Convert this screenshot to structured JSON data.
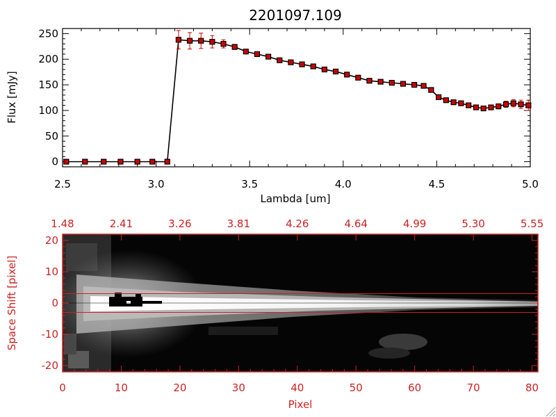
{
  "chart_data": [
    {
      "type": "line",
      "title": "2201097.109",
      "xlabel": "Lambda [um]",
      "ylabel": "Flux [mJy]",
      "xlim": [
        2.5,
        5.0
      ],
      "ylim": [
        -10,
        260
      ],
      "xticks": [
        "2.5",
        "3.0",
        "3.5",
        "4.0",
        "4.5",
        "5.0"
      ],
      "yticks": [
        "0",
        "50",
        "100",
        "150",
        "200",
        "250"
      ],
      "series": [
        {
          "name": "flux",
          "x": [
            2.52,
            2.62,
            2.72,
            2.81,
            2.9,
            2.98,
            3.06,
            3.12,
            3.18,
            3.24,
            3.3,
            3.36,
            3.42,
            3.48,
            3.54,
            3.6,
            3.66,
            3.72,
            3.78,
            3.84,
            3.9,
            3.96,
            4.02,
            4.08,
            4.14,
            4.2,
            4.26,
            4.32,
            4.38,
            4.43,
            4.47,
            4.51,
            4.55,
            4.59,
            4.63,
            4.67,
            4.71,
            4.75,
            4.79,
            4.83,
            4.87,
            4.91,
            4.95,
            4.99
          ],
          "y": [
            0,
            0,
            0,
            0,
            0,
            0,
            0,
            238,
            236,
            236,
            234,
            230,
            224,
            215,
            210,
            205,
            198,
            194,
            190,
            186,
            180,
            176,
            170,
            164,
            158,
            156,
            154,
            152,
            150,
            148,
            140,
            126,
            120,
            116,
            114,
            110,
            106,
            104,
            106,
            108,
            112,
            114,
            112,
            110
          ],
          "err": [
            0,
            0,
            0,
            0,
            0,
            0,
            0,
            18,
            16,
            15,
            12,
            8,
            5,
            4,
            3,
            3,
            3,
            3,
            3,
            3,
            3,
            3,
            3,
            3,
            3,
            3,
            3,
            3,
            3,
            3,
            3,
            4,
            4,
            4,
            4,
            4,
            4,
            4,
            4,
            5,
            6,
            7,
            8,
            10
          ]
        }
      ]
    },
    {
      "type": "heatmap",
      "xlabel": "Pixel",
      "ylabel": "Space Shift [pixel]",
      "xlim": [
        0,
        81
      ],
      "ylim": [
        -22,
        22
      ],
      "xticks": [
        "0",
        "10",
        "20",
        "30",
        "40",
        "50",
        "60",
        "70",
        "80"
      ],
      "yticks": [
        "-20",
        "-10",
        "0",
        "10",
        "20"
      ],
      "top_axis_label_values": [
        "1.48",
        "2.41",
        "3.26",
        "3.81",
        "4.26",
        "4.64",
        "4.99",
        "5.30",
        "5.55"
      ],
      "extraction_window": [
        -3,
        3
      ],
      "trace_center": 0
    }
  ],
  "colors": {
    "axis_red": "#cc2222",
    "marker_red": "#cc0000",
    "line_black": "#000000"
  }
}
